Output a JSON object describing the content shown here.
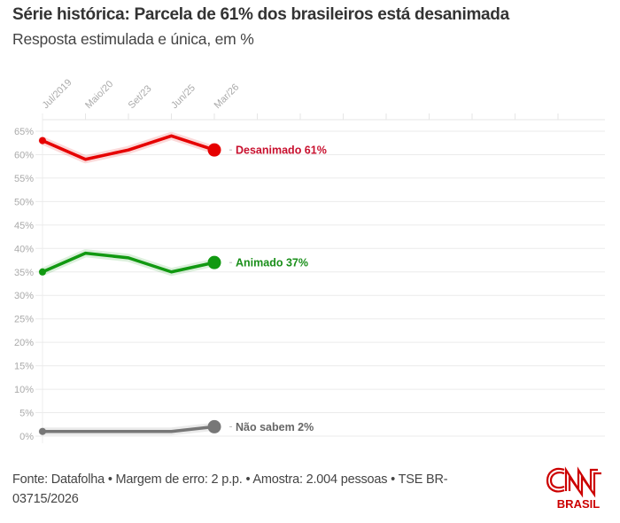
{
  "title": "Série histórica: Parcela de 61% dos brasileiros está desanimada",
  "subtitle": "Resposta estimulada e única, em %",
  "footer": "Fonte: Datafolha • Margem de erro: 2 p.p. • Amostra: 2.004 pessoas • TSE BR-03715/2026",
  "logo": {
    "name": "CNN",
    "sub": "BRASIL",
    "color": "#cc0000"
  },
  "chart_data": {
    "type": "line",
    "categories": [
      "Jul/2019",
      "Maio/20",
      "Set/23",
      "Jun/25",
      "Mar/26"
    ],
    "ylim": [
      0,
      65
    ],
    "yticks": [
      0,
      5,
      10,
      15,
      20,
      25,
      30,
      35,
      40,
      45,
      50,
      55,
      60,
      65
    ],
    "ytick_suffix": "%",
    "grid": true,
    "series": [
      {
        "name": "Desanimado",
        "label": "Desanimado 61%",
        "color": "#e60000",
        "label_color": "#c8102e",
        "values": [
          63,
          59,
          61,
          64,
          61
        ]
      },
      {
        "name": "Animado",
        "label": "Animado 37%",
        "color": "#119911",
        "label_color": "#1a8f1a",
        "values": [
          35,
          39,
          38,
          35,
          37
        ]
      },
      {
        "name": "Não sabem",
        "label": "Não sabem 2%",
        "color": "#777777",
        "label_color": "#666666",
        "values": [
          1,
          1,
          1,
          1,
          2
        ]
      }
    ]
  }
}
